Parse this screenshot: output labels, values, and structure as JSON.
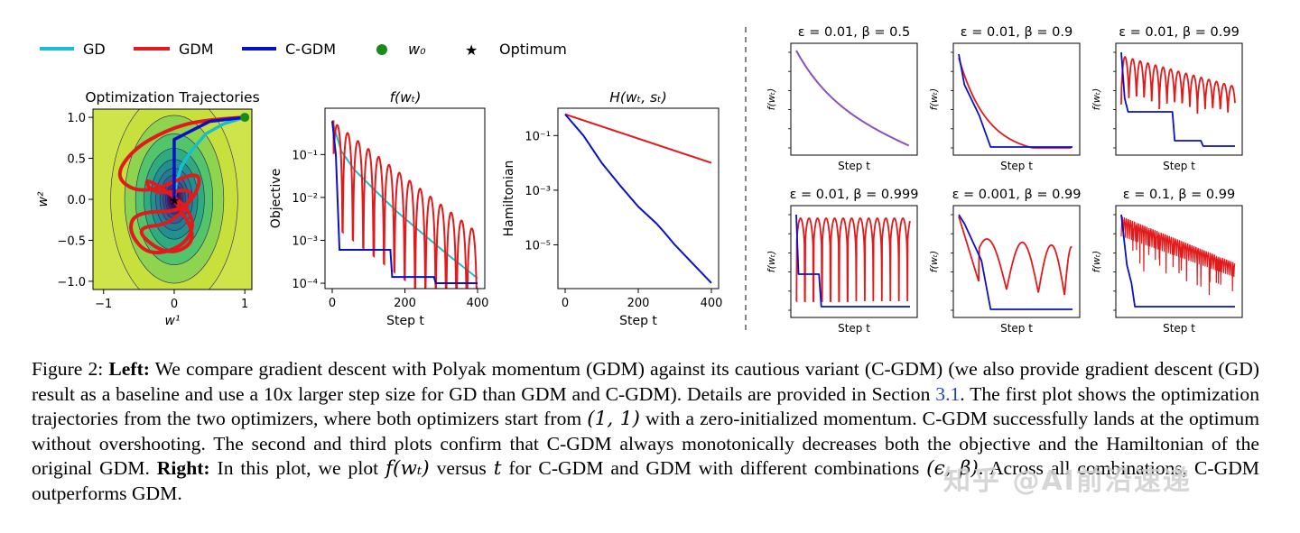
{
  "legend": {
    "items": [
      {
        "label": "GD",
        "color": "#17becf",
        "kind": "line"
      },
      {
        "label": "GDM",
        "color": "#e31a1c",
        "kind": "line"
      },
      {
        "label": "C-GDM",
        "color": "#0a10c8",
        "kind": "line"
      },
      {
        "label": "w₀",
        "color": "#1a8a1a",
        "kind": "dot"
      },
      {
        "label": "Optimum",
        "color": "#000000",
        "kind": "star"
      }
    ]
  },
  "chart_data": [
    {
      "type": "line",
      "title": "Optimization Trajectories",
      "xlabel": "w¹",
      "ylabel": "w²",
      "xlim": [
        -1.15,
        1.1
      ],
      "ylim": [
        -1.1,
        1.1
      ],
      "xticks": [
        "−1",
        "0",
        "1"
      ],
      "yticks": [
        "1.0",
        "0.5",
        "0.0",
        "−0.5",
        "−1.0"
      ],
      "start": [
        1,
        1
      ],
      "optimum": [
        0,
        0
      ],
      "series": [
        {
          "name": "GD",
          "points": [
            [
              1,
              1
            ],
            [
              0.7,
              0.92
            ],
            [
              0.45,
              0.8
            ],
            [
              0.25,
              0.6
            ],
            [
              0.1,
              0.4
            ],
            [
              0.03,
              0.2
            ],
            [
              0,
              0
            ]
          ]
        },
        {
          "name": "GDM",
          "points": [
            [
              1,
              1
            ],
            [
              0.4,
              0.97
            ],
            [
              -0.1,
              0.85
            ],
            [
              -0.6,
              0.6
            ],
            [
              -0.85,
              0.25
            ],
            [
              -0.4,
              0.05
            ],
            [
              0.45,
              0.4
            ],
            [
              0.2,
              -0.15
            ],
            [
              -0.55,
              -0.15
            ],
            [
              -0.65,
              -0.4
            ],
            [
              -0.35,
              -0.7
            ],
            [
              0.2,
              -0.55
            ],
            [
              0.3,
              -0.15
            ],
            [
              -0.45,
              0.3
            ],
            [
              -0.3,
              0.05
            ],
            [
              0.35,
              0.15
            ],
            [
              0,
              -0.3
            ],
            [
              -0.6,
              -0.35
            ],
            [
              -0.1,
              -0.7
            ],
            [
              0.35,
              -0.5
            ],
            [
              0,
              0
            ]
          ]
        },
        {
          "name": "C-GDM",
          "points": [
            [
              1,
              1
            ],
            [
              0.5,
              0.95
            ],
            [
              0,
              0.73
            ],
            [
              0,
              -0.02
            ]
          ]
        }
      ]
    },
    {
      "type": "line",
      "title": "f(wₜ)",
      "xlabel": "Step t",
      "ylabel": "Objective",
      "yscale": "log",
      "xlim": [
        0,
        400
      ],
      "ylim": [
        7.5e-05,
        1.2
      ],
      "xticks": [
        "0",
        "200",
        "400"
      ],
      "yticks": [
        "10⁻¹",
        "10⁻²",
        "10⁻³",
        "10⁻⁴"
      ],
      "series": [
        {
          "name": "GD",
          "values": [
            0.6,
            0.12,
            0.045,
            0.014,
            0.0045,
            0.0014,
            0.00045,
            0.00013
          ],
          "x": [
            0,
            25,
            60,
            120,
            180,
            250,
            320,
            400
          ]
        },
        {
          "name": "C-GDM",
          "steps": [
            [
              0,
              0.6
            ],
            [
              10,
              0.1
            ],
            [
              20,
              0.0006
            ],
            [
              160,
              0.0006
            ],
            [
              165,
              0.00014
            ],
            [
              280,
              0.00014
            ],
            [
              285,
              0.0001
            ],
            [
              400,
              0.0001
            ]
          ]
        },
        {
          "name": "GDM",
          "decay_start": 0.6,
          "decay_end": 0.0015,
          "period": 28
        }
      ]
    },
    {
      "type": "line",
      "title": "H(wₜ, sₜ)",
      "xlabel": "Step t",
      "ylabel": "Hamiltonian",
      "yscale": "log",
      "xlim": [
        0,
        400
      ],
      "ylim": [
        2.5e-07,
        1.0
      ],
      "xticks": [
        "0",
        "200",
        "400"
      ],
      "yticks": [
        "10⁻¹",
        "10⁻³",
        "10⁻⁵"
      ],
      "series": [
        {
          "name": "GDM",
          "x": [
            0,
            400
          ],
          "values": [
            0.6,
            0.01
          ]
        },
        {
          "name": "C-GDM",
          "x": [
            0,
            50,
            100,
            150,
            200,
            250,
            270,
            300,
            350,
            400
          ],
          "values": [
            0.6,
            0.1,
            0.01,
            0.0015,
            0.00025,
            6e-05,
            3e-05,
            1e-05,
            2e-06,
            4e-07
          ]
        }
      ]
    }
  ],
  "small_plots": [
    {
      "title": "ε = 0.01, β = 0.5",
      "mode": "smooth",
      "ylabel": "f(wₜ)",
      "xlabel": "Step t"
    },
    {
      "title": "ε = 0.01, β = 0.9",
      "mode": "fast",
      "ylabel": "f(wₜ)",
      "xlabel": "Step t"
    },
    {
      "title": "ε = 0.01, β = 0.99",
      "mode": "osc",
      "ylabel": "f(wₜ)",
      "xlabel": "Step t"
    },
    {
      "title": "ε = 0.01, β = 0.999",
      "mode": "osc_flat",
      "ylabel": "f(wₜ)",
      "xlabel": "Step t"
    },
    {
      "title": "ε = 0.001, β = 0.99",
      "mode": "slow",
      "ylabel": "f(wₜ)",
      "xlabel": "Step t"
    },
    {
      "title": "ε = 0.1, β = 0.99",
      "mode": "dense",
      "ylabel": "f(wₜ)",
      "xlabel": "Step t"
    }
  ],
  "caption": {
    "fig_label": "Figure 2:",
    "left_label": "Left:",
    "text1": " We compare gradient descent with Polyak momentum (GDM) against its cautious variant (C-GDM) (we also provide gradient descent (GD) result as a baseline and use a 10x larger step size for GD than GDM and C-GDM). Details are provided in Section ",
    "section_ref": "3.1",
    "text2": ". The first plot shows the optimization trajectories from the two optimizers, where both optimizers start from ",
    "math1": "(1, 1)",
    "text3": " with a zero-initialized momentum. C-GDM successfully lands at the optimum without overshooting. The second and third plots confirm that C-GDM always monotonically decreases both the objective and the Hamiltonian of the original GDM. ",
    "right_label": "Right:",
    "text4": " In this plot, we plot ",
    "math2": "f(wₜ)",
    "text5": " versus ",
    "math3": "t",
    "text6": " for C-GDM and GDM with different combinations ",
    "math4": "(ϵ, β)",
    "text7": ". Across all combinations, C-GDM outperforms GDM."
  },
  "watermark": "知乎 @AI前沿速递",
  "colors": {
    "gd": "#17becf",
    "gdm": "#e31a1c",
    "cgdm": "#0a10c8",
    "purple": "#8a52b8"
  }
}
